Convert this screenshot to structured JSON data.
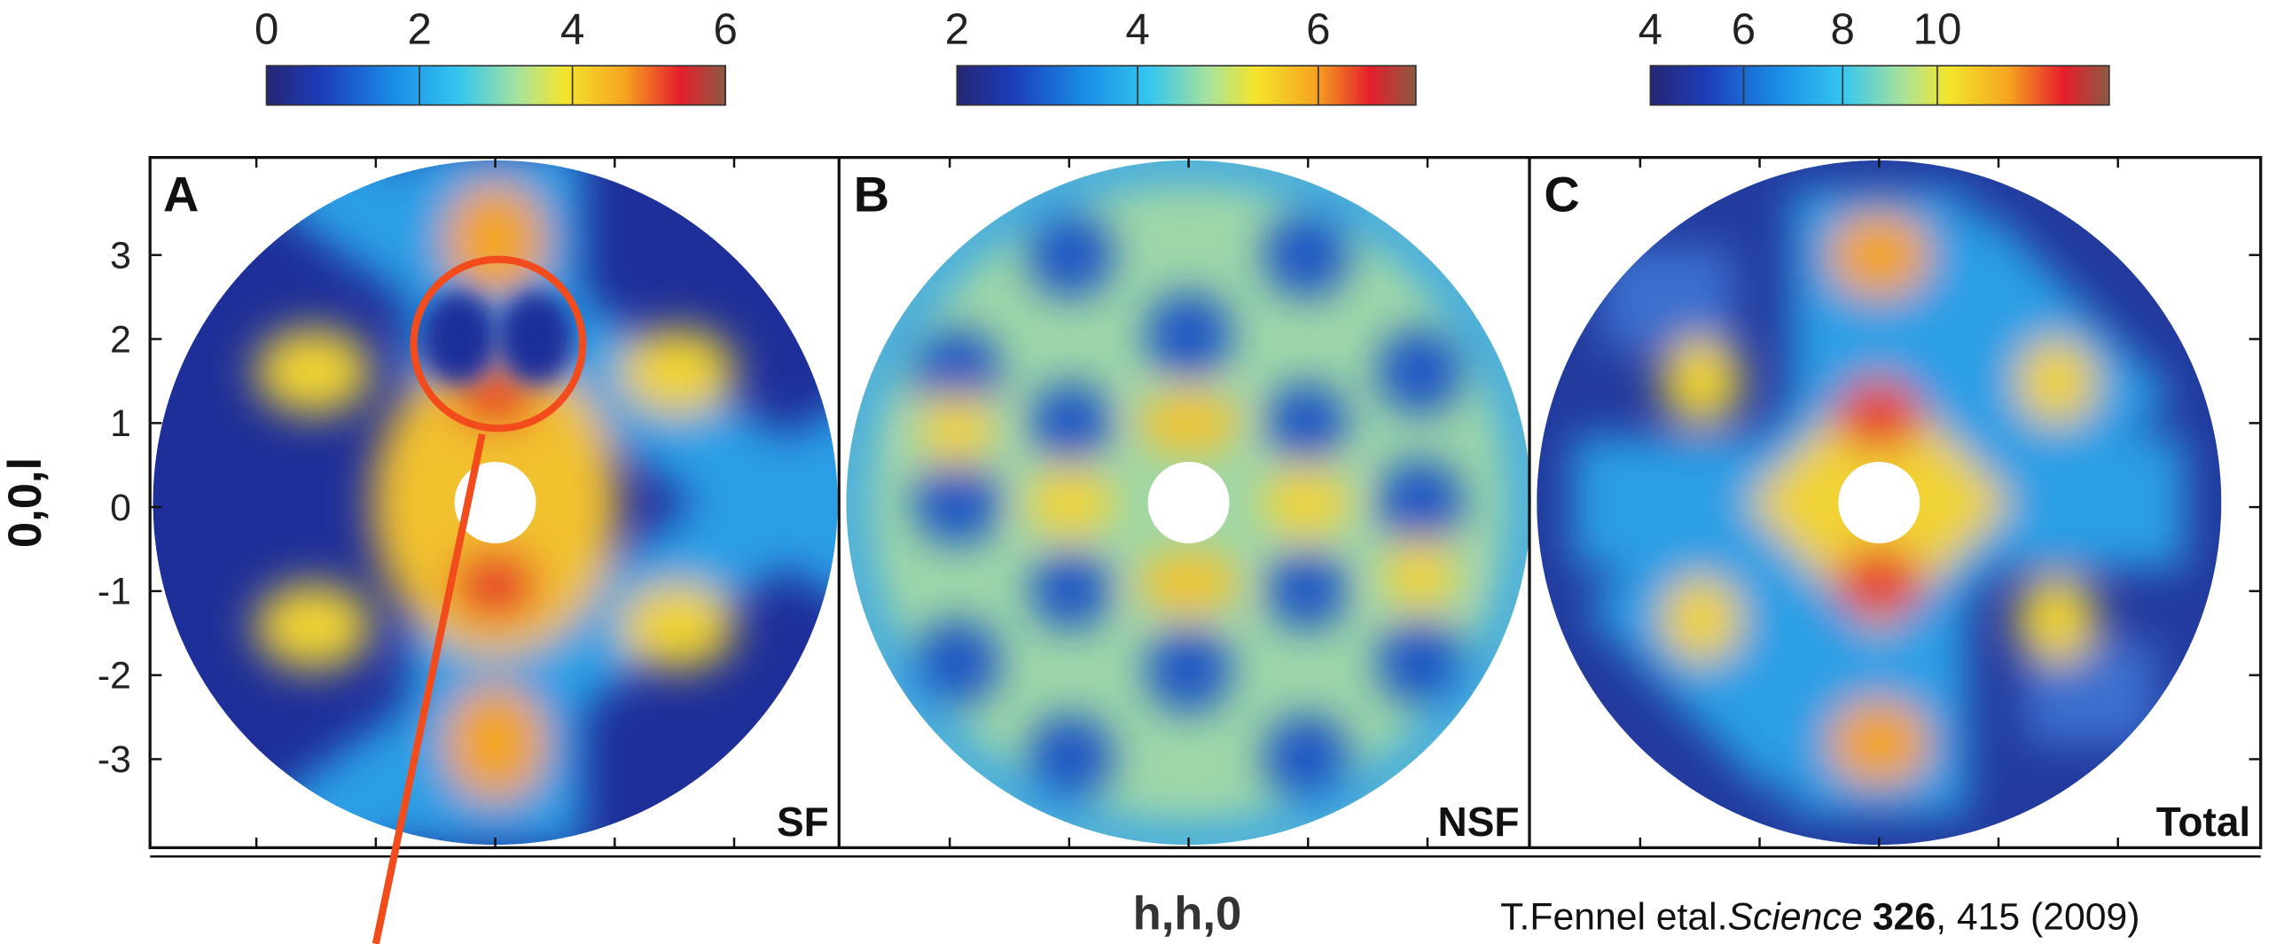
{
  "colorbars": [
    {
      "ticks": [
        "0",
        "2",
        "4",
        "6"
      ]
    },
    {
      "ticks": [
        "2",
        "4",
        "6"
      ]
    },
    {
      "ticks": [
        "4",
        "6",
        "8",
        "10"
      ]
    }
  ],
  "panels": [
    {
      "letter": "A",
      "label": "SF"
    },
    {
      "letter": "B",
      "label": "NSF"
    },
    {
      "letter": "C",
      "label": "Total"
    }
  ],
  "y_axis": {
    "label": "0,0,l",
    "ticks": [
      "3",
      "2",
      "1",
      "0",
      "-1",
      "-2",
      "-3"
    ]
  },
  "x_axis": {
    "label": "h,h,0"
  },
  "citation": {
    "authors": "T.Fennel etal.",
    "journal": "Science",
    "volume": "326",
    "pages": ", 415 (2009)"
  }
}
